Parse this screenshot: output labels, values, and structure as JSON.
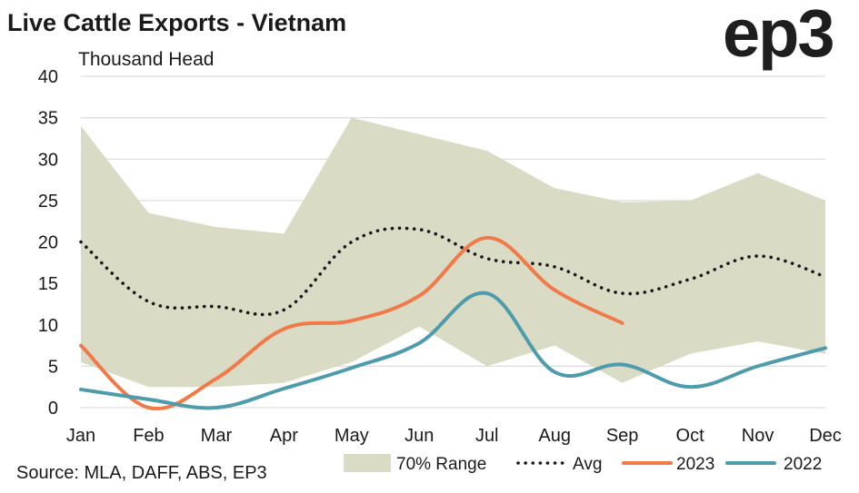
{
  "header": {
    "title": "Live Cattle Exports - Vietnam",
    "logo_text": "ep3",
    "unit_label": "Thousand Head"
  },
  "footer": {
    "source": "Source: MLA, DAFF, ABS, EP3"
  },
  "chart_data": {
    "type": "line",
    "title": "Live Cattle Exports - Vietnam",
    "ylabel": "Thousand Head",
    "xlabel": "",
    "categories": [
      "Jan",
      "Feb",
      "Mar",
      "Apr",
      "May",
      "Jun",
      "Jul",
      "Aug",
      "Sep",
      "Oct",
      "Nov",
      "Dec"
    ],
    "ylim": [
      0,
      40
    ],
    "yticks": [
      0,
      5,
      10,
      15,
      20,
      25,
      30,
      35,
      40
    ],
    "grid": true,
    "legend_position": "bottom",
    "band": {
      "name": "70% Range",
      "color": "#d9dbc4",
      "lower": [
        5.5,
        2.5,
        2.5,
        3.0,
        5.5,
        9.8,
        5.0,
        7.5,
        3.0,
        6.5,
        8.0,
        6.5
      ],
      "upper": [
        34.0,
        23.5,
        21.8,
        21.0,
        35.0,
        33.0,
        31.0,
        26.5,
        24.8,
        25.0,
        28.3,
        25.0
      ]
    },
    "series": [
      {
        "name": "Avg",
        "color": "#1a1a1a",
        "style": "dotted",
        "values": [
          20.0,
          12.8,
          12.2,
          11.8,
          20.0,
          21.5,
          18.0,
          17.0,
          13.8,
          15.5,
          18.3,
          15.8
        ]
      },
      {
        "name": "2023",
        "color": "#f07a4a",
        "style": "solid",
        "values": [
          7.5,
          0.0,
          3.5,
          9.5,
          10.5,
          13.5,
          20.5,
          14.2,
          10.2,
          null,
          null,
          null
        ]
      },
      {
        "name": "2022",
        "color": "#4e9bab",
        "style": "solid",
        "values": [
          2.2,
          1.0,
          0.0,
          2.3,
          4.8,
          7.8,
          13.8,
          4.3,
          5.2,
          2.5,
          5.0,
          7.2
        ]
      }
    ]
  }
}
